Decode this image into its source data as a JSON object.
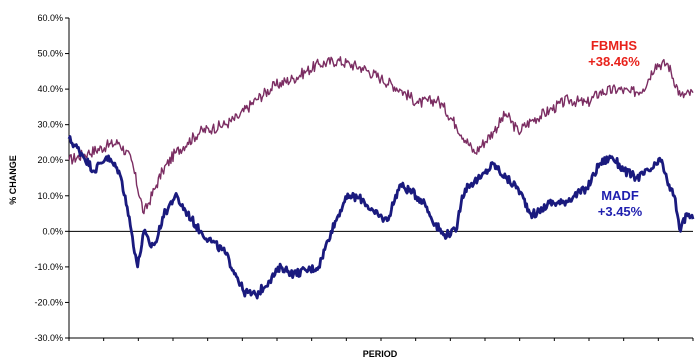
{
  "chart_data": {
    "type": "line",
    "title": "",
    "xlabel": "PERIOD",
    "ylabel": "% CHANGE",
    "ylim": [
      -30,
      60
    ],
    "y_ticks": [
      -30,
      -20,
      -10,
      0,
      10,
      20,
      30,
      40,
      50,
      60
    ],
    "y_tick_labels": [
      "-30.0%",
      "-20.0%",
      "-10.0%",
      "0.0%",
      "10.0%",
      "20.0%",
      "30.0%",
      "40.0%",
      "50.0%",
      "60.0%"
    ],
    "x_tick_labels": [
      "",
      "",
      "",
      "",
      "",
      "",
      "",
      "",
      "",
      "",
      "",
      "",
      "",
      "",
      "",
      "",
      "",
      "",
      ""
    ],
    "grid": false,
    "legend": "none",
    "series": [
      {
        "name": "FBMHS",
        "color": "#7B2D62",
        "x": [
          0,
          3,
          6,
          8,
          10,
          12,
          14,
          15,
          17,
          19,
          21,
          23,
          25,
          27,
          30,
          33,
          36,
          38,
          40,
          43,
          45,
          47,
          50,
          53,
          56,
          59,
          60,
          62,
          65,
          68,
          70,
          72,
          74,
          77,
          80,
          83,
          85,
          88,
          90,
          92,
          94,
          96,
          98,
          100
        ],
        "values": [
          20,
          22,
          24,
          25,
          20,
          5,
          13,
          17,
          22,
          25,
          28,
          29,
          30,
          32,
          37,
          41,
          43,
          45,
          47,
          48,
          47,
          46,
          43,
          40,
          36,
          37,
          35,
          30,
          22,
          28,
          33,
          28,
          31,
          34,
          37,
          36,
          39,
          40,
          39,
          40,
          47,
          47,
          38,
          39
        ]
      },
      {
        "name": "MADF",
        "color": "#1A1A7E",
        "x": [
          0,
          2,
          4,
          6,
          8,
          9,
          10,
          11,
          12,
          13,
          14,
          15,
          17,
          19,
          21,
          23,
          25,
          27,
          28,
          30,
          32,
          34,
          36,
          38,
          40,
          42,
          44,
          45,
          47,
          49,
          51,
          53,
          55,
          57,
          58,
          60,
          62,
          63,
          64,
          66,
          68,
          70,
          72,
          74,
          75,
          77,
          79,
          81,
          83,
          85,
          87,
          89,
          91,
          93,
          95,
          96,
          97,
          98,
          99,
          100
        ],
        "values": [
          26,
          22,
          17,
          21,
          17,
          10,
          0,
          -10,
          0,
          -4,
          -3,
          4,
          10,
          5,
          0,
          -3,
          -6,
          -13,
          -17,
          -18,
          -14,
          -10,
          -12,
          -11,
          -10,
          0,
          8,
          10,
          9,
          5,
          3,
          13,
          11,
          8,
          4,
          -1,
          0,
          10,
          13,
          15,
          19,
          15,
          12,
          5,
          5,
          8,
          8,
          10,
          12,
          19,
          21,
          17,
          15,
          17,
          20,
          13,
          10,
          0,
          5,
          3.45
        ]
      }
    ],
    "annotations": [
      {
        "text": "FBMHS",
        "color": "#E8221B"
      },
      {
        "text": "+38.46%",
        "color": "#E8221B"
      },
      {
        "text": "MADF",
        "color": "#1F1FAF"
      },
      {
        "text": "+3.45%",
        "color": "#1F1FAF"
      }
    ]
  }
}
